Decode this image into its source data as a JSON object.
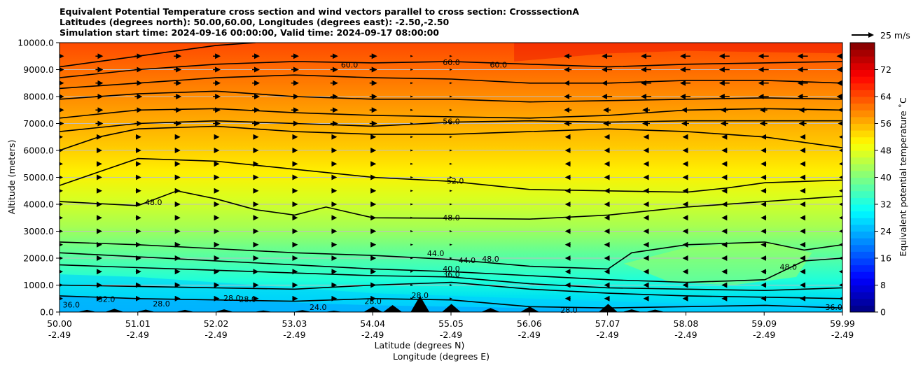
{
  "chart_data": {
    "type": "contourf_cross_section",
    "title_lines": [
      "Equivalent Potential Temperature cross section and wind vectors parallel to cross section: CrosssectionA",
      "Latitudes (degrees north): 50.00,60.00, Longitudes (degrees east): -2.50,-2.50",
      "Simulation start time: 2024-09-16 00:00:00, Valid time: 2024-09-17 08:00:00"
    ],
    "ylabel": "Altitude (meters)",
    "xlabel_lines": [
      "Latitude (degrees N)",
      "Longitude (degrees E)"
    ],
    "ylim": [
      0,
      10000
    ],
    "yticks": [
      "0.0",
      "1000.0",
      "2000.0",
      "3000.0",
      "4000.0",
      "5000.0",
      "6000.0",
      "7000.0",
      "8000.0",
      "9000.0",
      "10000.0"
    ],
    "ytick_values": [
      0,
      1000,
      2000,
      3000,
      4000,
      5000,
      6000,
      7000,
      8000,
      9000,
      10000
    ],
    "xticks_lat": [
      "50.00",
      "51.01",
      "52.02",
      "53.03",
      "54.04",
      "55.05",
      "56.06",
      "57.07",
      "58.08",
      "59.09",
      "59.99"
    ],
    "xticks_lon": [
      "-2.49",
      "-2.49",
      "-2.49",
      "-2.49",
      "-2.49",
      "-2.49",
      "-2.49",
      "-2.49",
      "-2.49",
      "-2.49",
      "-2.49"
    ],
    "xlim": [
      50.0,
      59.99
    ],
    "colorbar": {
      "label": "Equivalent potential temperature ˚C",
      "range": [
        0,
        80
      ],
      "ticks": [
        "0",
        "8",
        "16",
        "24",
        "32",
        "40",
        "48",
        "56",
        "64",
        "72"
      ],
      "tick_values": [
        0,
        8,
        16,
        24,
        32,
        40,
        48,
        56,
        64,
        72
      ],
      "colormap": "jet"
    },
    "quiver_key": "25 m/s",
    "contour_labels": [
      {
        "text": "60.0",
        "lat": 53.7,
        "alt": 9150
      },
      {
        "text": "60.0",
        "lat": 55.0,
        "alt": 9250
      },
      {
        "text": "60.0",
        "lat": 55.6,
        "alt": 9150
      },
      {
        "text": "56.0",
        "lat": 55.0,
        "alt": 7050
      },
      {
        "text": "52.0",
        "lat": 55.05,
        "alt": 4850
      },
      {
        "text": "48.0",
        "lat": 51.2,
        "alt": 4050
      },
      {
        "text": "48.0",
        "lat": 55.0,
        "alt": 3480
      },
      {
        "text": "48.0",
        "lat": 55.5,
        "alt": 1950
      },
      {
        "text": "48.0",
        "lat": 59.3,
        "alt": 1650
      },
      {
        "text": "44.0",
        "lat": 54.8,
        "alt": 2150
      },
      {
        "text": "44.0",
        "lat": 55.2,
        "alt": 1900
      },
      {
        "text": "40.0",
        "lat": 55.0,
        "alt": 1580
      },
      {
        "text": "36.0",
        "lat": 55.0,
        "alt": 1380
      },
      {
        "text": "36.0",
        "lat": 50.15,
        "alt": 250
      },
      {
        "text": "36.0",
        "lat": 59.88,
        "alt": 150
      },
      {
        "text": "32.0",
        "lat": 50.6,
        "alt": 450
      },
      {
        "text": "28.0",
        "lat": 51.3,
        "alt": 280
      },
      {
        "text": "28.0",
        "lat": 52.2,
        "alt": 500
      },
      {
        "text": "28.0",
        "lat": 52.4,
        "alt": 450
      },
      {
        "text": "28.0",
        "lat": 54.0,
        "alt": 380
      },
      {
        "text": "28.0",
        "lat": 54.6,
        "alt": 600
      },
      {
        "text": "28.0",
        "lat": 56.5,
        "alt": 50
      },
      {
        "text": "24.0",
        "lat": 53.3,
        "alt": 150
      }
    ],
    "theta_e_profile_description": [
      {
        "alt": 0,
        "value": 26
      },
      {
        "alt": 1000,
        "value": 34
      },
      {
        "alt": 2000,
        "value": 40
      },
      {
        "alt": 3000,
        "value": 44
      },
      {
        "alt": 4000,
        "value": 48
      },
      {
        "alt": 5000,
        "value": 51
      },
      {
        "alt": 6000,
        "value": 54
      },
      {
        "alt": 7000,
        "value": 57
      },
      {
        "alt": 8000,
        "value": 59
      },
      {
        "alt": 9000,
        "value": 62
      },
      {
        "alt": 10000,
        "value": 65
      }
    ],
    "wind_direction": {
      "south_half": "toward north",
      "north_half": "toward south"
    }
  }
}
